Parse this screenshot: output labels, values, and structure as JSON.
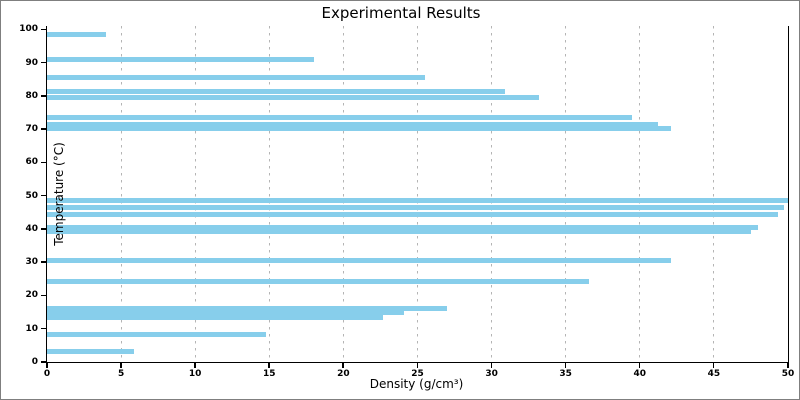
{
  "chart_data": {
    "type": "bar",
    "orientation": "horizontal",
    "title": "Experimental Results",
    "xlabel": "Density (g/cm³)",
    "ylabel": "Temperature (°C)",
    "xlim": [
      0,
      50
    ],
    "ylim": [
      0,
      101
    ],
    "x_ticks": [
      0,
      5,
      10,
      15,
      20,
      25,
      30,
      35,
      40,
      45,
      50
    ],
    "y_ticks": [
      0,
      10,
      20,
      30,
      40,
      50,
      60,
      70,
      80,
      90,
      100
    ],
    "grid": "vertical-dashed",
    "legend": "none",
    "bar_color": "#87CEEB",
    "grid_color": "#b4b4b4",
    "bar_height_units": 1.5,
    "points": [
      {
        "temperature": 98.3,
        "density": 4.0
      },
      {
        "temperature": 90.8,
        "density": 18.0
      },
      {
        "temperature": 85.4,
        "density": 25.5
      },
      {
        "temperature": 81.4,
        "density": 30.9
      },
      {
        "temperature": 79.4,
        "density": 33.2
      },
      {
        "temperature": 73.4,
        "density": 39.5
      },
      {
        "temperature": 71.3,
        "density": 41.2
      },
      {
        "temperature": 70.3,
        "density": 42.1
      },
      {
        "temperature": 48.5,
        "density": 50.0
      },
      {
        "temperature": 46.4,
        "density": 49.7
      },
      {
        "temperature": 44.4,
        "density": 49.3
      },
      {
        "temperature": 40.5,
        "density": 48.0
      },
      {
        "temperature": 39.1,
        "density": 47.5
      },
      {
        "temperature": 30.4,
        "density": 42.1
      },
      {
        "temperature": 24.2,
        "density": 36.6
      },
      {
        "temperature": 16.2,
        "density": 27.0
      },
      {
        "temperature": 14.8,
        "density": 24.1
      },
      {
        "temperature": 13.4,
        "density": 22.7
      },
      {
        "temperature": 8.4,
        "density": 14.8
      },
      {
        "temperature": 3.2,
        "density": 5.9
      }
    ]
  }
}
